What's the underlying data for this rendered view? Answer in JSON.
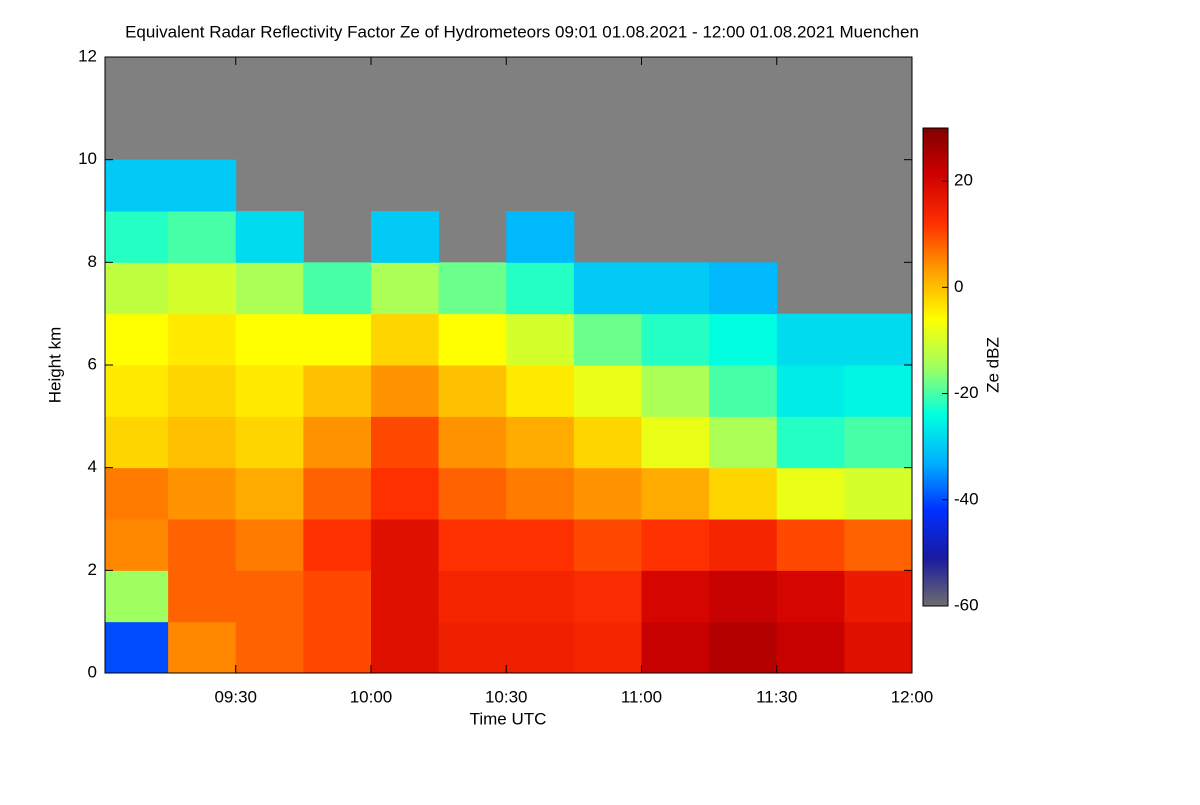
{
  "chart_data": {
    "type": "heatmap",
    "title": "Equivalent Radar Reflectivity Factor Ze of Hydrometeors   09:01 01.08.2021 - 12:00 01.08.2021 Muenchen",
    "x_label": "Time UTC",
    "y_label": "Height km",
    "colorbar_label": "Ze dBZ",
    "xlim": [
      541,
      720
    ],
    "xticks": [
      {
        "value": 570,
        "label": "09:30"
      },
      {
        "value": 600,
        "label": "10:00"
      },
      {
        "value": 630,
        "label": "10:30"
      },
      {
        "value": 660,
        "label": "11:00"
      },
      {
        "value": 690,
        "label": "11:30"
      },
      {
        "value": 720,
        "label": "12:00"
      }
    ],
    "ylim": [
      0,
      12
    ],
    "yticks": [
      0,
      2,
      4,
      6,
      8,
      10,
      12
    ],
    "zlim": [
      -60,
      30
    ],
    "zticks": [
      -60,
      -40,
      -20,
      0,
      20
    ],
    "x_bins": [
      541,
      555,
      570,
      585,
      600,
      615,
      630,
      645,
      660,
      675,
      690,
      705,
      720
    ],
    "y_bins": [
      0,
      1,
      2,
      3,
      4,
      5,
      6,
      7,
      8,
      9,
      10
    ],
    "z": [
      [
        -40,
        5,
        8,
        10,
        18,
        15,
        15,
        14,
        22,
        24,
        22,
        18
      ],
      [
        -15,
        8,
        8,
        10,
        18,
        14,
        14,
        13,
        20,
        22,
        20,
        16
      ],
      [
        5,
        8,
        6,
        12,
        18,
        12,
        12,
        10,
        12,
        14,
        10,
        8
      ],
      [
        6,
        4,
        2,
        8,
        12,
        8,
        6,
        4,
        2,
        -2,
        -8,
        -10
      ],
      [
        -2,
        0,
        -2,
        4,
        10,
        4,
        2,
        -2,
        -8,
        -14,
        -22,
        -20
      ],
      [
        -4,
        -2,
        -4,
        0,
        4,
        0,
        -4,
        -8,
        -14,
        -20,
        -26,
        -25
      ],
      [
        -6,
        -4,
        -6,
        -6,
        -2,
        -6,
        -10,
        -18,
        -22,
        -24,
        -28,
        -28
      ],
      [
        -12,
        -10,
        -14,
        -20,
        -14,
        -18,
        -22,
        -30,
        -30,
        -32,
        null,
        null
      ],
      [
        -22,
        -20,
        -28,
        null,
        -30,
        null,
        -32,
        null,
        null,
        null,
        null,
        null
      ],
      [
        -30,
        -30,
        null,
        null,
        null,
        null,
        null,
        null,
        null,
        null,
        null,
        null
      ]
    ],
    "colormap": [
      "#6e6e6e",
      "#1a1aa0",
      "#0030ff",
      "#00b0ff",
      "#00ffe0",
      "#a0ff60",
      "#ffff00",
      "#ffa000",
      "#ff3000",
      "#d00000",
      "#800000"
    ],
    "missing_color": "#808080"
  }
}
